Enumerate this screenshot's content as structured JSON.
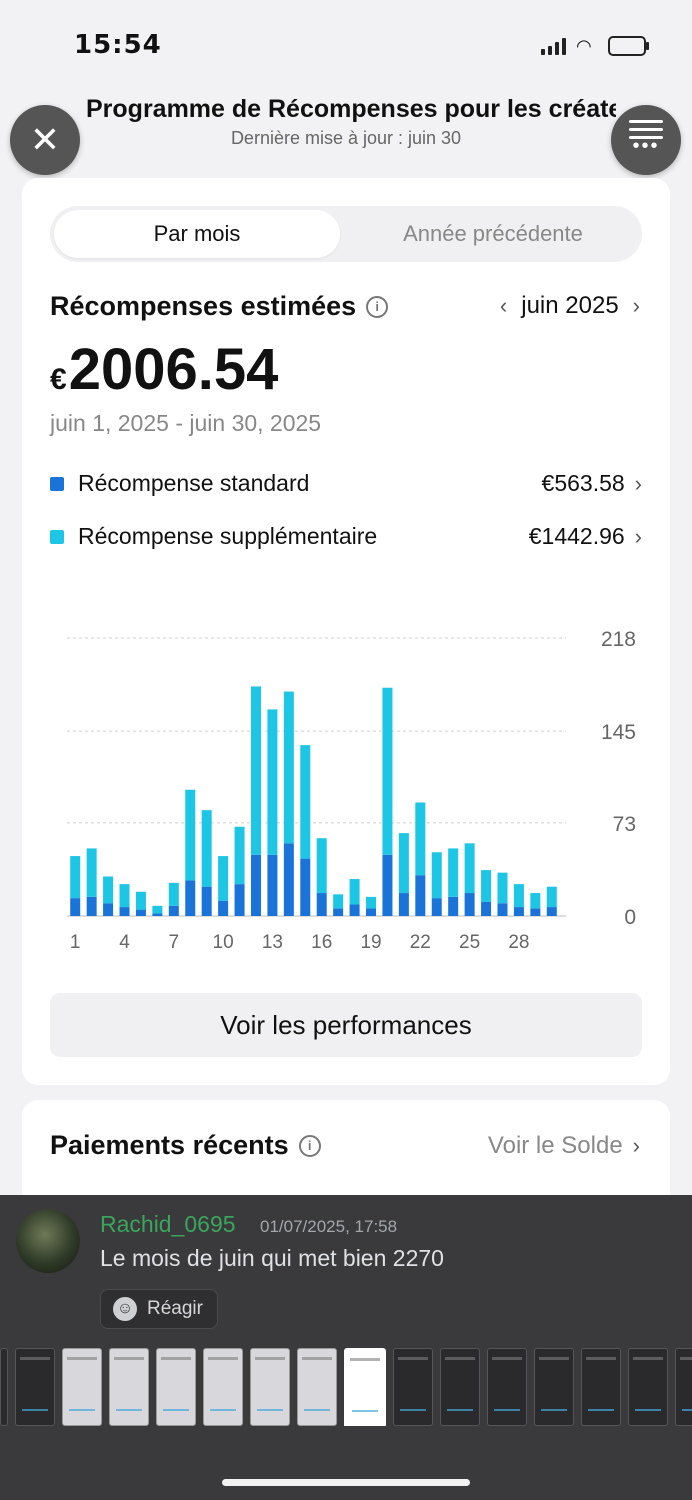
{
  "status_bar": {
    "time": "15:54"
  },
  "header": {
    "title": "Programme de Récompenses pour les créateurs",
    "subtitle": "Dernière mise à jour : juin 30"
  },
  "tabs": [
    {
      "label": "Par mois",
      "active": true
    },
    {
      "label": "Année précédente",
      "active": false
    }
  ],
  "rewards": {
    "title": "Récompenses estimées",
    "month": "juin 2025",
    "currency": "€",
    "amount": "2006.54",
    "date_range": "juin 1, 2025 - juin 30, 2025",
    "standard": {
      "label": "Récompense standard",
      "value": "€563.58",
      "color": "#1a73d9"
    },
    "extra": {
      "label": "Récompense supplémentaire",
      "value": "€1442.96",
      "color": "#1ec6e6"
    }
  },
  "chart_data": {
    "type": "bar",
    "stacked": true,
    "categories": [
      1,
      2,
      3,
      4,
      5,
      6,
      7,
      8,
      9,
      10,
      11,
      12,
      13,
      14,
      15,
      16,
      17,
      18,
      19,
      20,
      21,
      22,
      23,
      24,
      25,
      26,
      27,
      28,
      29,
      30
    ],
    "x_tick_labels": [
      "1",
      "4",
      "7",
      "10",
      "13",
      "16",
      "19",
      "22",
      "25",
      "28"
    ],
    "y_ticks": [
      "0",
      "73",
      "145",
      "218"
    ],
    "ylim": [
      0,
      218
    ],
    "grid": true,
    "series": [
      {
        "name": "Récompense standard",
        "color": "#1a73d9",
        "values": [
          14,
          15,
          10,
          7,
          5,
          2,
          8,
          28,
          23,
          12,
          25,
          48,
          48,
          57,
          45,
          18,
          6,
          9,
          6,
          48,
          18,
          32,
          14,
          15,
          18,
          11,
          10,
          7,
          6,
          7
        ]
      },
      {
        "name": "Récompense supplémentaire",
        "color": "#1ec6e6",
        "values": [
          33,
          38,
          21,
          18,
          14,
          6,
          18,
          71,
          60,
          35,
          45,
          132,
          114,
          119,
          89,
          43,
          11,
          20,
          9,
          131,
          47,
          57,
          36,
          38,
          39,
          25,
          24,
          18,
          12,
          16
        ]
      }
    ]
  },
  "performance_button": "Voir les performances",
  "payments": {
    "title": "Paiements récents",
    "link": "Voir le Solde"
  },
  "discord": {
    "username": "Rachid_0695",
    "timestamp": "01/07/2025, 17:58",
    "message": "Le mois de juin qui met bien 2270",
    "react_label": "Réagir"
  }
}
